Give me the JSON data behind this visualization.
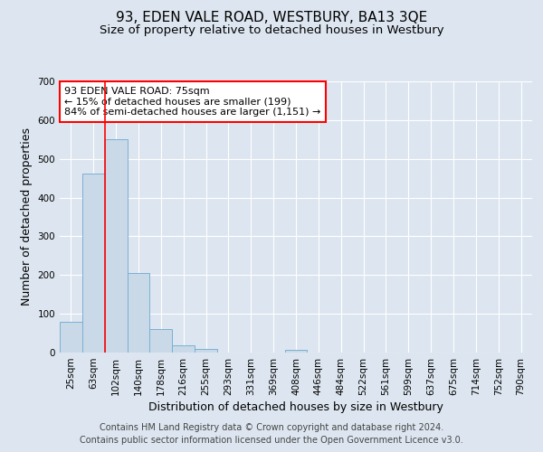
{
  "title": "93, EDEN VALE ROAD, WESTBURY, BA13 3QE",
  "subtitle": "Size of property relative to detached houses in Westbury",
  "xlabel": "Distribution of detached houses by size in Westbury",
  "ylabel": "Number of detached properties",
  "categories": [
    "25sqm",
    "63sqm",
    "102sqm",
    "140sqm",
    "178sqm",
    "216sqm",
    "255sqm",
    "293sqm",
    "331sqm",
    "369sqm",
    "408sqm",
    "446sqm",
    "484sqm",
    "522sqm",
    "561sqm",
    "599sqm",
    "637sqm",
    "675sqm",
    "714sqm",
    "752sqm",
    "790sqm"
  ],
  "values": [
    80,
    462,
    550,
    205,
    60,
    18,
    10,
    0,
    0,
    0,
    8,
    0,
    0,
    0,
    0,
    0,
    0,
    0,
    0,
    0,
    0
  ],
  "bar_color": "#c9d9e8",
  "bar_edge_color": "#7ab0d4",
  "red_line_x": 1.5,
  "ylim": [
    0,
    700
  ],
  "yticks": [
    0,
    100,
    200,
    300,
    400,
    500,
    600,
    700
  ],
  "annotation_text": "93 EDEN VALE ROAD: 75sqm\n← 15% of detached houses are smaller (199)\n84% of semi-detached houses are larger (1,151) →",
  "annotation_box_color": "white",
  "annotation_box_edge_color": "red",
  "footer_line1": "Contains HM Land Registry data © Crown copyright and database right 2024.",
  "footer_line2": "Contains public sector information licensed under the Open Government Licence v3.0.",
  "background_color": "#dde6f0",
  "plot_bg_color": "#dde6f0",
  "grid_color": "white",
  "title_fontsize": 11,
  "subtitle_fontsize": 9.5,
  "axis_label_fontsize": 9,
  "tick_fontsize": 7.5,
  "annotation_fontsize": 8,
  "footer_fontsize": 7
}
